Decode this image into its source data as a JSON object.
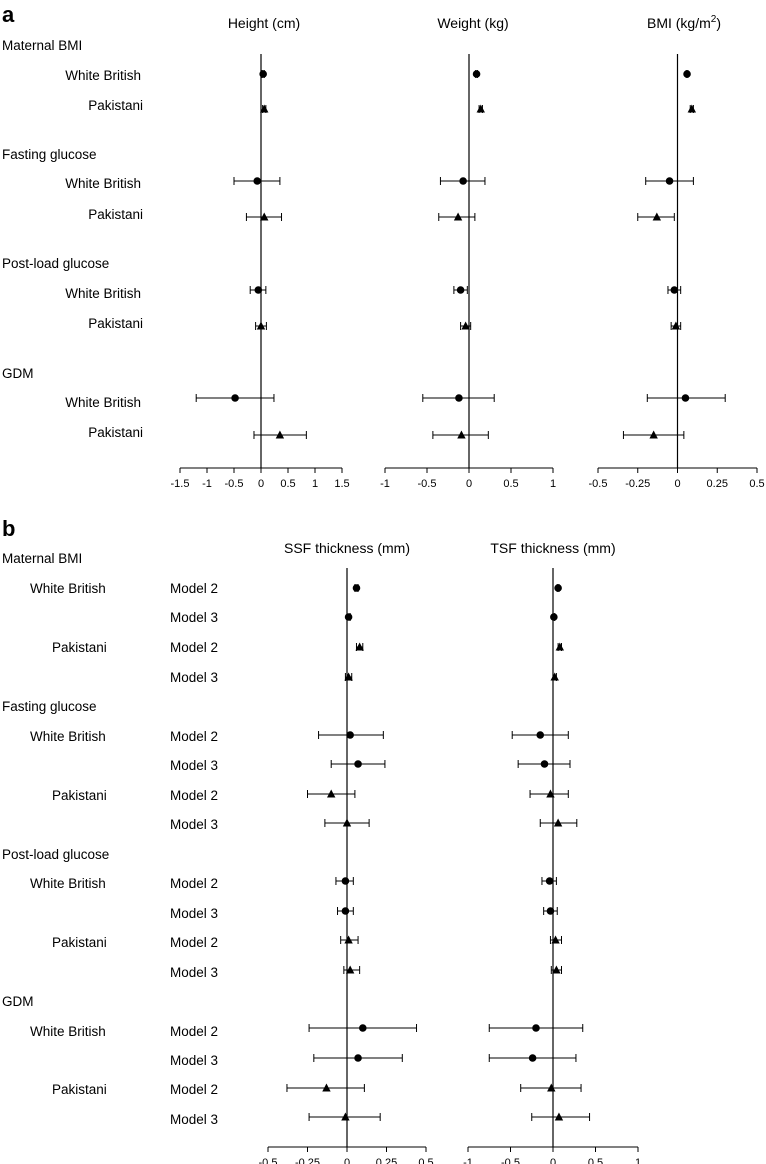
{
  "panel_letters": [
    "a",
    "b"
  ],
  "chart_data": [
    {
      "type": "forest",
      "panel": "a",
      "groups": [
        "Maternal BMI",
        "Fasting glucose",
        "Post-load glucose",
        "GDM"
      ],
      "subgroups": [
        "White British",
        "Pakistani"
      ],
      "markers": {
        "White British": "circle",
        "Pakistani": "triangle"
      },
      "subplots": [
        {
          "title_text": "Height (cm)",
          "xlim": [
            -1.5,
            1.5
          ],
          "ticks": [
            -1.5,
            -1,
            -0.5,
            0,
            0.5,
            1,
            1.5
          ],
          "tick_labels": [
            "-1.5",
            "-1",
            "-0.5",
            "0",
            "0.5",
            "1",
            "1.5"
          ],
          "rows": [
            {
              "group": "Maternal BMI",
              "subgroup": "White British",
              "estimate": 0.04,
              "lower": 0.02,
              "upper": 0.06
            },
            {
              "group": "Maternal BMI",
              "subgroup": "Pakistani",
              "estimate": 0.06,
              "lower": 0.03,
              "upper": 0.09
            },
            {
              "group": "Fasting glucose",
              "subgroup": "White British",
              "estimate": -0.07,
              "lower": -0.5,
              "upper": 0.35
            },
            {
              "group": "Fasting glucose",
              "subgroup": "Pakistani",
              "estimate": 0.06,
              "lower": -0.27,
              "upper": 0.38
            },
            {
              "group": "Post-load glucose",
              "subgroup": "White British",
              "estimate": -0.05,
              "lower": -0.2,
              "upper": 0.09
            },
            {
              "group": "Post-load glucose",
              "subgroup": "Pakistani",
              "estimate": 0.0,
              "lower": -0.1,
              "upper": 0.1
            },
            {
              "group": "GDM",
              "subgroup": "White British",
              "estimate": -0.48,
              "lower": -1.2,
              "upper": 0.24
            },
            {
              "group": "GDM",
              "subgroup": "Pakistani",
              "estimate": 0.35,
              "lower": -0.13,
              "upper": 0.84
            }
          ]
        },
        {
          "title_text": "Weight (kg)",
          "xlim": [
            -1,
            1
          ],
          "ticks": [
            -1,
            -0.5,
            0,
            0.5,
            1
          ],
          "tick_labels": [
            "-1",
            "-0.5",
            "0",
            "0.5",
            "1"
          ],
          "rows": [
            {
              "group": "Maternal BMI",
              "subgroup": "White British",
              "estimate": 0.09,
              "lower": 0.08,
              "upper": 0.1
            },
            {
              "group": "Maternal BMI",
              "subgroup": "Pakistani",
              "estimate": 0.14,
              "lower": 0.12,
              "upper": 0.16
            },
            {
              "group": "Fasting glucose",
              "subgroup": "White British",
              "estimate": -0.07,
              "lower": -0.34,
              "upper": 0.19
            },
            {
              "group": "Fasting glucose",
              "subgroup": "Pakistani",
              "estimate": -0.13,
              "lower": -0.36,
              "upper": 0.07
            },
            {
              "group": "Post-load glucose",
              "subgroup": "White British",
              "estimate": -0.1,
              "lower": -0.18,
              "upper": -0.02
            },
            {
              "group": "Post-load glucose",
              "subgroup": "Pakistani",
              "estimate": -0.04,
              "lower": -0.1,
              "upper": 0.02
            },
            {
              "group": "GDM",
              "subgroup": "White British",
              "estimate": -0.12,
              "lower": -0.55,
              "upper": 0.3
            },
            {
              "group": "GDM",
              "subgroup": "Pakistani",
              "estimate": -0.09,
              "lower": -0.43,
              "upper": 0.23
            }
          ]
        },
        {
          "title_text": "BMI (kg/m",
          "title_sup": "2",
          "title_close": ")",
          "xlim": [
            -0.5,
            0.5
          ],
          "ticks": [
            -0.5,
            -0.25,
            0,
            0.25,
            0.5
          ],
          "tick_labels": [
            "-0.5",
            "-0.25",
            "0",
            "0.25",
            "0.5"
          ],
          "rows": [
            {
              "group": "Maternal BMI",
              "subgroup": "White British",
              "estimate": 0.06,
              "lower": 0.055,
              "upper": 0.065
            },
            {
              "group": "Maternal BMI",
              "subgroup": "Pakistani",
              "estimate": 0.09,
              "lower": 0.08,
              "upper": 0.1
            },
            {
              "group": "Fasting glucose",
              "subgroup": "White British",
              "estimate": -0.05,
              "lower": -0.2,
              "upper": 0.1
            },
            {
              "group": "Fasting glucose",
              "subgroup": "Pakistani",
              "estimate": -0.13,
              "lower": -0.25,
              "upper": -0.02
            },
            {
              "group": "Post-load glucose",
              "subgroup": "White British",
              "estimate": -0.02,
              "lower": -0.06,
              "upper": 0.02
            },
            {
              "group": "Post-load glucose",
              "subgroup": "Pakistani",
              "estimate": -0.01,
              "lower": -0.04,
              "upper": 0.02
            },
            {
              "group": "GDM",
              "subgroup": "White British",
              "estimate": 0.05,
              "lower": -0.19,
              "upper": 0.3
            },
            {
              "group": "GDM",
              "subgroup": "Pakistani",
              "estimate": -0.15,
              "lower": -0.34,
              "upper": 0.04
            }
          ]
        }
      ]
    },
    {
      "type": "forest",
      "panel": "b",
      "groups": [
        "Maternal BMI",
        "Fasting glucose",
        "Post-load glucose",
        "GDM"
      ],
      "subgroups": [
        "White British",
        "Pakistani"
      ],
      "models": [
        "Model 2",
        "Model 3"
      ],
      "markers": {
        "White British": "circle",
        "Pakistani": "triangle"
      },
      "subplots": [
        {
          "title_text": "SSF thickness (mm)",
          "xlim": [
            -0.5,
            0.5
          ],
          "ticks": [
            -0.5,
            -0.25,
            0,
            0.25,
            0.5
          ],
          "tick_labels": [
            "-0.5",
            "-0.25",
            "0",
            "0.25",
            "0.5"
          ],
          "rows": [
            {
              "group": "Maternal BMI",
              "subgroup": "White British",
              "model": "Model 2",
              "estimate": 0.06,
              "lower": 0.05,
              "upper": 0.07
            },
            {
              "group": "Maternal BMI",
              "subgroup": "White British",
              "model": "Model 3",
              "estimate": 0.01,
              "lower": 0.0,
              "upper": 0.02
            },
            {
              "group": "Maternal BMI",
              "subgroup": "Pakistani",
              "model": "Model 2",
              "estimate": 0.08,
              "lower": 0.06,
              "upper": 0.1
            },
            {
              "group": "Maternal BMI",
              "subgroup": "Pakistani",
              "model": "Model 3",
              "estimate": 0.01,
              "lower": -0.01,
              "upper": 0.03
            },
            {
              "group": "Fasting glucose",
              "subgroup": "White British",
              "model": "Model 2",
              "estimate": 0.02,
              "lower": -0.18,
              "upper": 0.23
            },
            {
              "group": "Fasting glucose",
              "subgroup": "White British",
              "model": "Model 3",
              "estimate": 0.07,
              "lower": -0.1,
              "upper": 0.24
            },
            {
              "group": "Fasting glucose",
              "subgroup": "Pakistani",
              "model": "Model 2",
              "estimate": -0.1,
              "lower": -0.25,
              "upper": 0.05
            },
            {
              "group": "Fasting glucose",
              "subgroup": "Pakistani",
              "model": "Model 3",
              "estimate": 0.0,
              "lower": -0.14,
              "upper": 0.14
            },
            {
              "group": "Post-load glucose",
              "subgroup": "White British",
              "model": "Model 2",
              "estimate": -0.01,
              "lower": -0.07,
              "upper": 0.04
            },
            {
              "group": "Post-load glucose",
              "subgroup": "White British",
              "model": "Model 3",
              "estimate": -0.01,
              "lower": -0.06,
              "upper": 0.04
            },
            {
              "group": "Post-load glucose",
              "subgroup": "Pakistani",
              "model": "Model 2",
              "estimate": 0.01,
              "lower": -0.04,
              "upper": 0.07
            },
            {
              "group": "Post-load glucose",
              "subgroup": "Pakistani",
              "model": "Model 3",
              "estimate": 0.02,
              "lower": -0.02,
              "upper": 0.08
            },
            {
              "group": "GDM",
              "subgroup": "White British",
              "model": "Model 2",
              "estimate": 0.1,
              "lower": -0.24,
              "upper": 0.44
            },
            {
              "group": "GDM",
              "subgroup": "White British",
              "model": "Model 3",
              "estimate": 0.07,
              "lower": -0.21,
              "upper": 0.35
            },
            {
              "group": "GDM",
              "subgroup": "Pakistani",
              "model": "Model 2",
              "estimate": -0.13,
              "lower": -0.38,
              "upper": 0.11
            },
            {
              "group": "GDM",
              "subgroup": "Pakistani",
              "model": "Model 3",
              "estimate": -0.01,
              "lower": -0.24,
              "upper": 0.21
            }
          ]
        },
        {
          "title_text": "TSF thickness (mm)",
          "xlim": [
            -1,
            1
          ],
          "ticks": [
            -1,
            -0.5,
            0,
            0.5,
            1
          ],
          "tick_labels": [
            "-1",
            "-0.5",
            "0",
            "0.5",
            "1"
          ],
          "rows": [
            {
              "group": "Maternal BMI",
              "subgroup": "White British",
              "model": "Model 2",
              "estimate": 0.06,
              "lower": 0.05,
              "upper": 0.07
            },
            {
              "group": "Maternal BMI",
              "subgroup": "White British",
              "model": "Model 3",
              "estimate": 0.01,
              "lower": 0.0,
              "upper": 0.02
            },
            {
              "group": "Maternal BMI",
              "subgroup": "Pakistani",
              "model": "Model 2",
              "estimate": 0.08,
              "lower": 0.06,
              "upper": 0.1
            },
            {
              "group": "Maternal BMI",
              "subgroup": "Pakistani",
              "model": "Model 3",
              "estimate": 0.02,
              "lower": 0.0,
              "upper": 0.04
            },
            {
              "group": "Fasting glucose",
              "subgroup": "White British",
              "model": "Model 2",
              "estimate": -0.15,
              "lower": -0.48,
              "upper": 0.18
            },
            {
              "group": "Fasting glucose",
              "subgroup": "White British",
              "model": "Model 3",
              "estimate": -0.1,
              "lower": -0.41,
              "upper": 0.2
            },
            {
              "group": "Fasting glucose",
              "subgroup": "Pakistani",
              "model": "Model 2",
              "estimate": -0.03,
              "lower": -0.27,
              "upper": 0.18
            },
            {
              "group": "Fasting glucose",
              "subgroup": "Pakistani",
              "model": "Model 3",
              "estimate": 0.06,
              "lower": -0.15,
              "upper": 0.28
            },
            {
              "group": "Post-load glucose",
              "subgroup": "White British",
              "model": "Model 2",
              "estimate": -0.04,
              "lower": -0.13,
              "upper": 0.04
            },
            {
              "group": "Post-load glucose",
              "subgroup": "White British",
              "model": "Model 3",
              "estimate": -0.03,
              "lower": -0.11,
              "upper": 0.05
            },
            {
              "group": "Post-load glucose",
              "subgroup": "Pakistani",
              "model": "Model 2",
              "estimate": 0.03,
              "lower": -0.03,
              "upper": 0.1
            },
            {
              "group": "Post-load glucose",
              "subgroup": "Pakistani",
              "model": "Model 3",
              "estimate": 0.04,
              "lower": -0.02,
              "upper": 0.1
            },
            {
              "group": "GDM",
              "subgroup": "White British",
              "model": "Model 2",
              "estimate": -0.2,
              "lower": -0.75,
              "upper": 0.35
            },
            {
              "group": "GDM",
              "subgroup": "White British",
              "model": "Model 3",
              "estimate": -0.24,
              "lower": -0.75,
              "upper": 0.27
            },
            {
              "group": "GDM",
              "subgroup": "Pakistani",
              "model": "Model 2",
              "estimate": -0.02,
              "lower": -0.38,
              "upper": 0.33
            },
            {
              "group": "GDM",
              "subgroup": "Pakistani",
              "model": "Model 3",
              "estimate": 0.07,
              "lower": -0.25,
              "upper": 0.43
            }
          ]
        }
      ]
    }
  ]
}
